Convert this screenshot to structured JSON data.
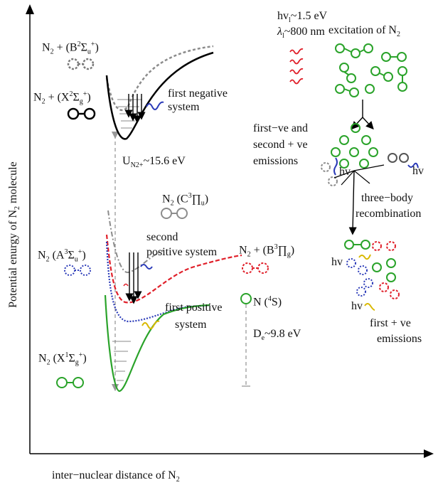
{
  "axes": {
    "y_label": "Potential enurgy of N",
    "y_label_sub": "2",
    "y_label_tail": " molecule",
    "x_label": "inter−nuclear distance of N",
    "x_label_sub": "2"
  },
  "states": {
    "b2": {
      "pre": "N",
      "sub1": "2",
      "mid": " + (B",
      "sup1": "2",
      "sym": "Σ",
      "sub2": "u",
      "sup2": "+",
      "post": ")"
    },
    "x2": {
      "pre": "N",
      "sub1": "2",
      "mid": " + (X",
      "sup1": "2",
      "sym": "Σ",
      "sub2": "g",
      "sup2": "+",
      "post": ")"
    },
    "c3": {
      "pre": "N",
      "sub1": "2",
      "mid": " (C",
      "sup1": "3",
      "sym": "∏",
      "sub2": "u",
      "sup2": "",
      "post": ")"
    },
    "a3": {
      "pre": "N",
      "sub1": "2",
      "mid": " (A",
      "sup1": "3",
      "sym": "Σ",
      "sub2": "u",
      "sup2": "+",
      "post": ")"
    },
    "b3": {
      "pre": "N",
      "sub1": "2",
      "mid": " + (B",
      "sup1": "3",
      "sym": "∏",
      "sub2": "g",
      "sup2": "",
      "post": ")"
    },
    "x1": {
      "pre": "N",
      "sub1": "2",
      "mid": " (X",
      "sup1": "1",
      "sym": "Σ",
      "sub2": "g",
      "sup2": "+",
      "post": ")"
    }
  },
  "systems": {
    "first_negative_1": "first negative",
    "first_negative_2": "system",
    "second_positive_1": "second",
    "second_positive_2": "positive system",
    "first_positive_1": "first positive",
    "first_positive_2": "system"
  },
  "energies": {
    "ionization_pre": "U",
    "ionization_sub": "N2+",
    "ionization_post": "~15.6 eV",
    "dissociation_pre": "D",
    "dissociation_sub": "e",
    "dissociation_post": "~9.8 eV",
    "atom_pre": "N (",
    "atom_sup": "4",
    "atom_post": "S)"
  },
  "panel": {
    "laser_energy_pre": "hv",
    "laser_energy_sub": "l",
    "laser_energy_post": "~1.5 eV",
    "laser_wavelength_pre": "λ",
    "laser_wavelength_sub": "l",
    "laser_wavelength_post": "~800 nm",
    "excitation_pre": "excitation of N",
    "excitation_sub": "2",
    "emissions_line1": "first−ve and",
    "emissions_line2": "second + ve",
    "emissions_line3": "emissions",
    "hv": "hv",
    "three_body_1": "three−body",
    "three_body_2": "recombination",
    "first_ve_1": "first + ve",
    "first_ve_2": "emissions"
  },
  "colors": {
    "axis": "#000000",
    "b2_curve": "#8c8c8c",
    "x2_curve": "#000000",
    "c3_curve": "#8c8c8c",
    "b3_curve": "#e0202a",
    "a3_curve": "#2b3bb8",
    "x1_curve": "#2aa32a",
    "green_molecule": "#2aa32a",
    "red_molecule": "#e0202a",
    "blue_molecule": "#2b3bb8",
    "gray_molecule": "#7a7a7a",
    "yellow_wave": "#d9b800",
    "guide_line": "#999999"
  }
}
